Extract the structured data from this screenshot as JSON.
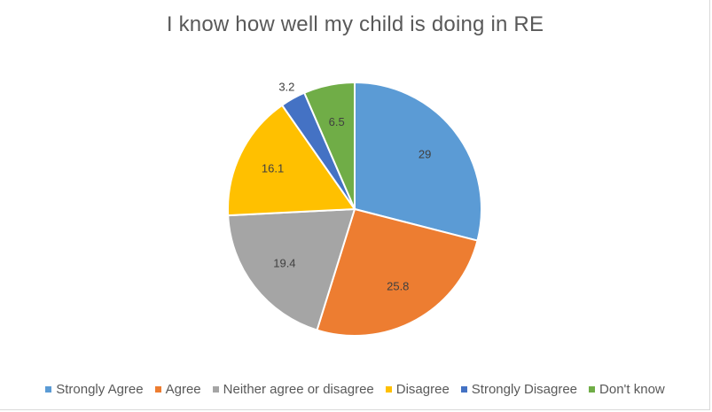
{
  "chart_data": {
    "type": "pie",
    "title": "I know how well my child is doing in RE",
    "categories": [
      "Strongly Agree",
      "Agree",
      "Neither agree or disagree",
      "Disagree",
      "Strongly Disagree",
      "Don't know"
    ],
    "values": [
      29,
      25.8,
      19.4,
      16.1,
      3.2,
      6.5
    ],
    "value_labels": [
      "29",
      "25.8",
      "19.4",
      "16.1",
      "3.2",
      "6.5"
    ],
    "colors": [
      "#5b9bd5",
      "#ed7d31",
      "#a5a5a5",
      "#ffc000",
      "#4472c4",
      "#70ad47"
    ],
    "start_angle_deg": 0,
    "direction": "clockwise",
    "legend_position": "bottom"
  }
}
